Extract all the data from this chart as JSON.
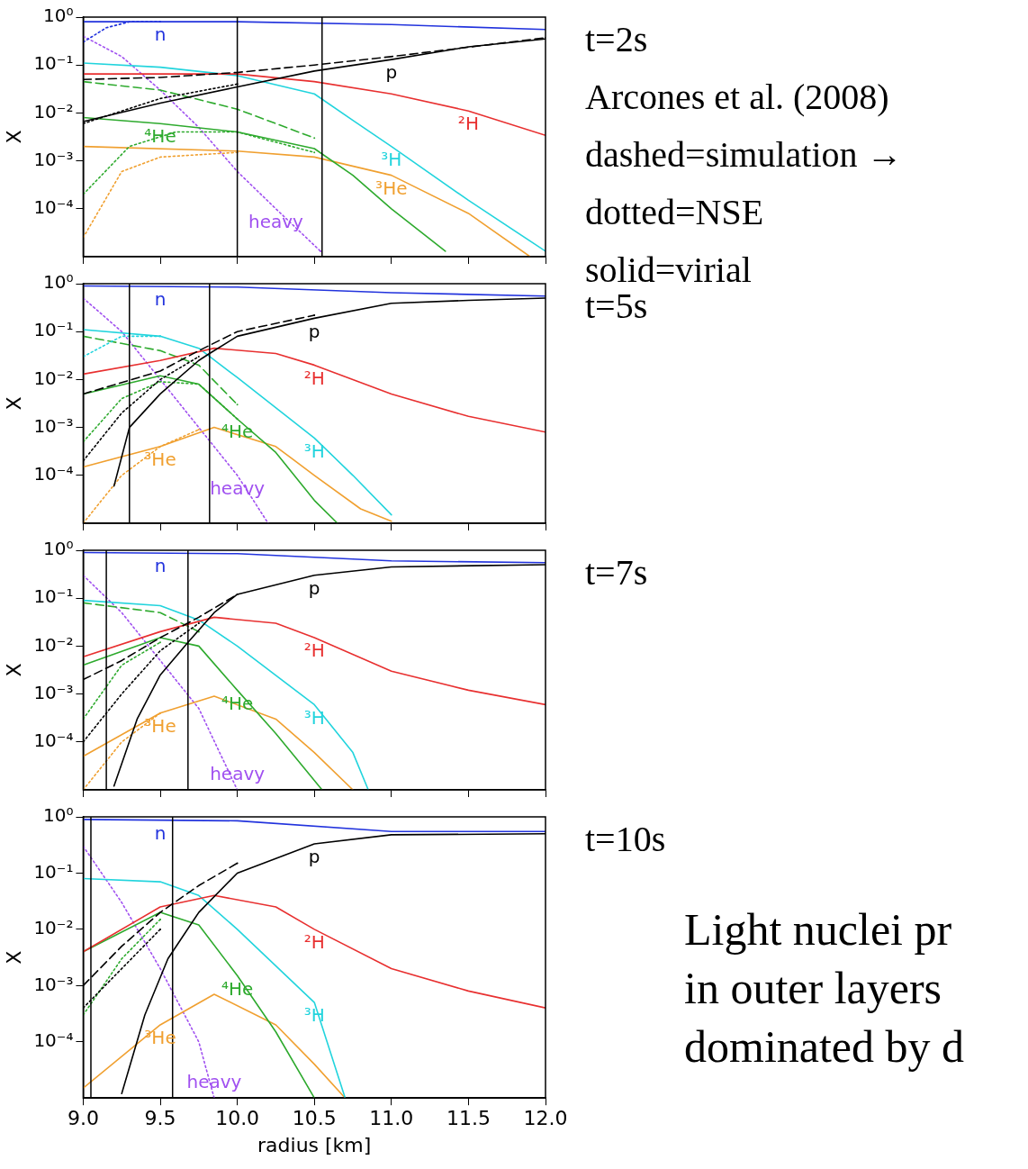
{
  "chart_data": [
    {
      "type": "line",
      "ylabel": "X",
      "log": "y",
      "tick_labels": "y",
      "xlim": [
        9,
        12
      ],
      "ylim": [
        1e-05,
        1
      ],
      "xticks": [
        9,
        9.5,
        10,
        10.5,
        11,
        11.5,
        12
      ],
      "yticks": [
        {
          "value": 1,
          "label": "10⁰"
        },
        {
          "value": 0.1,
          "label": "10⁻¹"
        },
        {
          "value": 0.01,
          "label": "10⁻²"
        },
        {
          "value": 0.001,
          "label": "10⁻³"
        },
        {
          "value": 0.0001,
          "label": "10⁻⁴"
        }
      ],
      "ref_lines": [
        {
          "axis": "x",
          "value": 10.0,
          "color": "#000000"
        },
        {
          "axis": "x",
          "value": 10.55,
          "color": "#000000"
        }
      ],
      "series": [
        {
          "color": "#2233dd",
          "line_style": "solid",
          "x": [
            9,
            10,
            11,
            12
          ],
          "values": [
            0.8,
            0.8,
            0.7,
            0.55
          ]
        },
        {
          "color": "#2233dd",
          "line_style": "dotted",
          "x": [
            9,
            9.15,
            9.3,
            9.5
          ],
          "values": [
            0.3,
            0.6,
            0.8,
            0.8
          ]
        },
        {
          "color": "#000000",
          "line_style": "solid",
          "x": [
            9,
            9.5,
            10,
            10.5,
            11,
            11.5,
            12
          ],
          "values": [
            0.0066,
            0.016,
            0.035,
            0.075,
            0.13,
            0.24,
            0.35
          ]
        },
        {
          "color": "#000000",
          "line_style": "dashed",
          "x": [
            9,
            9.5,
            10,
            10.5,
            11,
            12
          ],
          "values": [
            0.05,
            0.055,
            0.07,
            0.1,
            0.15,
            0.37
          ]
        },
        {
          "color": "#000000",
          "line_style": "dotted",
          "x": [
            9,
            9.5,
            10
          ],
          "values": [
            0.006,
            0.02,
            0.04
          ]
        },
        {
          "color": "#e83030",
          "line_style": "solid",
          "x": [
            9,
            10,
            10.5,
            11,
            11.5,
            12
          ],
          "values": [
            0.065,
            0.065,
            0.045,
            0.025,
            0.011,
            0.0034
          ]
        },
        {
          "color": "#22d4dd",
          "line_style": "solid",
          "x": [
            9,
            9.5,
            10,
            10.5,
            10.75,
            11,
            11.5,
            12
          ],
          "values": [
            0.11,
            0.09,
            0.06,
            0.025,
            0.007,
            0.002,
            0.00015,
            1.3e-05
          ]
        },
        {
          "color": "#2eaa2e",
          "line_style": "solid",
          "x": [
            9,
            9.5,
            10,
            10.5,
            10.75,
            11,
            11.35
          ],
          "values": [
            0.008,
            0.006,
            0.004,
            0.0018,
            0.0005,
            0.0001,
            1.3e-05
          ]
        },
        {
          "color": "#2eaa2e",
          "line_style": "dashed",
          "x": [
            9,
            9.5,
            10,
            10.5
          ],
          "values": [
            0.045,
            0.03,
            0.012,
            0.003
          ]
        },
        {
          "color": "#2eaa2e",
          "line_style": "dotted",
          "x": [
            9,
            9.3,
            9.6,
            10,
            10.5
          ],
          "values": [
            0.0002,
            0.002,
            0.004,
            0.004,
            0.0015
          ]
        },
        {
          "color": "#f0a030",
          "line_style": "solid",
          "x": [
            9,
            10,
            10.5,
            11,
            11.5,
            11.9
          ],
          "values": [
            0.002,
            0.0016,
            0.0012,
            0.0005,
            8e-05,
            1e-05
          ]
        },
        {
          "color": "#f0a030",
          "line_style": "dotted",
          "x": [
            9,
            9.25,
            9.5,
            10
          ],
          "values": [
            2.5e-05,
            0.0006,
            0.0012,
            0.0015
          ]
        },
        {
          "color": "#a050f0",
          "line_style": "dotted",
          "x": [
            9,
            9.25,
            9.5,
            9.75,
            10,
            10.25,
            10.54
          ],
          "values": [
            0.4,
            0.15,
            0.03,
            0.005,
            0.0006,
            0.0001,
            1.3e-05
          ]
        }
      ],
      "annotations": [
        "t=2s",
        "Arcones et al. (2008)",
        "dashed=simulation →",
        "dotted=NSE",
        "solid=virial",
        {
          "text": "n",
          "x": 9.5,
          "y": 0.8
        },
        {
          "text": "p",
          "x": 11,
          "y": 0.13
        },
        {
          "text": "²H",
          "x": 11.5,
          "y": 0.011
        },
        {
          "text": "³H",
          "x": 11,
          "y": 0.002
        },
        {
          "text": "⁴He",
          "x": 9.5,
          "y": 0.006
        },
        {
          "text": "³He",
          "x": 11,
          "y": 0.0005
        },
        {
          "text": "heavy",
          "x": 10.25,
          "y": 0.0001
        }
      ]
    },
    {
      "type": "line",
      "ylabel": "X",
      "log": "y",
      "tick_labels": "y",
      "xlim": [
        9,
        12
      ],
      "ylim": [
        1e-05,
        1
      ],
      "xticks": [
        9,
        9.5,
        10,
        10.5,
        11,
        11.5,
        12
      ],
      "yticks": [
        {
          "value": 1,
          "label": "10⁰"
        },
        {
          "value": 0.1,
          "label": "10⁻¹"
        },
        {
          "value": 0.01,
          "label": "10⁻²"
        },
        {
          "value": 0.001,
          "label": "10⁻³"
        },
        {
          "value": 0.0001,
          "label": "10⁻⁴"
        }
      ],
      "ref_lines": [
        {
          "axis": "x",
          "value": 9.3,
          "color": "#000000"
        },
        {
          "axis": "x",
          "value": 9.82,
          "color": "#000000"
        }
      ],
      "series": [
        {
          "color": "#2233dd",
          "line_style": "solid",
          "x": [
            9,
            10,
            11,
            12
          ],
          "values": [
            0.9,
            0.85,
            0.65,
            0.55
          ]
        },
        {
          "color": "#000000",
          "line_style": "solid",
          "x": [
            9.2,
            9.3,
            9.5,
            9.75,
            9.82,
            10,
            10.5,
            11,
            11.5,
            12
          ],
          "values": [
            6e-05,
            0.001,
            0.005,
            0.025,
            0.035,
            0.08,
            0.19,
            0.39,
            0.45,
            0.5
          ]
        },
        {
          "color": "#000000",
          "line_style": "dashed",
          "x": [
            9,
            9.5,
            9.75,
            10,
            10.5
          ],
          "values": [
            0.005,
            0.015,
            0.04,
            0.1,
            0.22
          ]
        },
        {
          "color": "#000000",
          "line_style": "dotted",
          "x": [
            9,
            9.25,
            9.5,
            9.75
          ],
          "values": [
            0.0002,
            0.002,
            0.01,
            0.03
          ]
        },
        {
          "color": "#e83030",
          "line_style": "solid",
          "x": [
            9,
            9.5,
            9.85,
            10.25,
            10.5,
            11,
            11.5,
            12
          ],
          "values": [
            0.013,
            0.025,
            0.045,
            0.035,
            0.02,
            0.005,
            0.0017,
            0.0008
          ]
        },
        {
          "color": "#22d4dd",
          "line_style": "solid",
          "x": [
            9,
            9.5,
            9.75,
            10,
            10.5,
            10.75,
            11
          ],
          "values": [
            0.11,
            0.08,
            0.045,
            0.011,
            0.0006,
            0.0001,
            1.5e-05
          ]
        },
        {
          "color": "#22d4dd",
          "line_style": "dotted",
          "x": [
            9,
            9.25,
            9.5
          ],
          "values": [
            0.03,
            0.08,
            0.08
          ]
        },
        {
          "color": "#2eaa2e",
          "line_style": "solid",
          "x": [
            9,
            9.5,
            9.75,
            10,
            10.25,
            10.5,
            10.65
          ],
          "values": [
            0.005,
            0.012,
            0.008,
            0.0015,
            0.0003,
            3e-05,
            1e-05
          ]
        },
        {
          "color": "#2eaa2e",
          "line_style": "dashed",
          "x": [
            9,
            9.5,
            9.75,
            10
          ],
          "values": [
            0.08,
            0.04,
            0.02,
            0.003
          ]
        },
        {
          "color": "#2eaa2e",
          "line_style": "dotted",
          "x": [
            9,
            9.25,
            9.5,
            9.75,
            10
          ],
          "values": [
            0.0005,
            0.004,
            0.009,
            0.008,
            0.0015
          ]
        },
        {
          "color": "#f0a030",
          "line_style": "solid",
          "x": [
            9,
            9.5,
            9.85,
            10.25,
            10.5,
            10.8,
            11
          ],
          "values": [
            0.00015,
            0.0004,
            0.001,
            0.0004,
            0.0001,
            2e-05,
            1.1e-05
          ]
        },
        {
          "color": "#f0a030",
          "line_style": "dotted",
          "x": [
            9,
            9.25,
            9.5,
            9.75
          ],
          "values": [
            1e-05,
            0.0001,
            0.0004,
            0.0009
          ]
        },
        {
          "color": "#a050f0",
          "line_style": "dotted",
          "x": [
            9,
            9.25,
            9.5,
            9.75,
            10,
            10.2
          ],
          "values": [
            0.5,
            0.1,
            0.01,
            0.001,
            0.0001,
            1e-05
          ]
        }
      ],
      "annotations": [
        "t=5s",
        {
          "text": "n",
          "x": 9.5,
          "y": 0.875
        },
        {
          "text": "p",
          "x": 10.5,
          "y": 0.19
        },
        {
          "text": "²H",
          "x": 10.5,
          "y": 0.02
        },
        {
          "text": "³H",
          "x": 10.5,
          "y": 0.0006
        },
        {
          "text": "⁴He",
          "x": 10,
          "y": 0.0015
        },
        {
          "text": "³He",
          "x": 9.5,
          "y": 0.0004
        },
        {
          "text": "heavy",
          "x": 10,
          "y": 0.0001
        }
      ]
    },
    {
      "type": "line",
      "ylabel": "X",
      "log": "y",
      "tick_labels": "y",
      "xlim": [
        9,
        12
      ],
      "ylim": [
        1e-05,
        1
      ],
      "xticks": [
        9,
        9.5,
        10,
        10.5,
        11,
        11.5,
        12
      ],
      "yticks": [
        {
          "value": 1,
          "label": "10⁰"
        },
        {
          "value": 0.1,
          "label": "10⁻¹"
        },
        {
          "value": 0.01,
          "label": "10⁻²"
        },
        {
          "value": 0.001,
          "label": "10⁻³"
        },
        {
          "value": 0.0001,
          "label": "10⁻⁴"
        }
      ],
      "ref_lines": [
        {
          "axis": "x",
          "value": 9.15,
          "color": "#000000"
        },
        {
          "axis": "x",
          "value": 9.68,
          "color": "#000000"
        }
      ],
      "series": [
        {
          "color": "#2233dd",
          "line_style": "solid",
          "x": [
            9,
            10,
            11,
            12
          ],
          "values": [
            0.9,
            0.85,
            0.6,
            0.55
          ]
        },
        {
          "color": "#000000",
          "line_style": "solid",
          "x": [
            9.2,
            9.35,
            9.5,
            9.68,
            9.85,
            10,
            10.5,
            11,
            12
          ],
          "values": [
            1.2e-05,
            0.0003,
            0.0025,
            0.012,
            0.05,
            0.12,
            0.3,
            0.45,
            0.5
          ]
        },
        {
          "color": "#000000",
          "line_style": "dashed",
          "x": [
            9,
            9.25,
            9.5,
            9.75,
            10
          ],
          "values": [
            0.002,
            0.005,
            0.015,
            0.04,
            0.12
          ]
        },
        {
          "color": "#000000",
          "line_style": "dotted",
          "x": [
            9,
            9.25,
            9.5,
            9.75
          ],
          "values": [
            0.0001,
            0.001,
            0.008,
            0.03
          ]
        },
        {
          "color": "#e83030",
          "line_style": "solid",
          "x": [
            9,
            9.5,
            9.85,
            10.25,
            10.5,
            11,
            11.5,
            12
          ],
          "values": [
            0.006,
            0.02,
            0.04,
            0.03,
            0.015,
            0.003,
            0.0012,
            0.0006
          ]
        },
        {
          "color": "#22d4dd",
          "line_style": "solid",
          "x": [
            9,
            9.5,
            9.75,
            10,
            10.5,
            10.75,
            10.85
          ],
          "values": [
            0.09,
            0.07,
            0.035,
            0.01,
            0.0006,
            6e-05,
            1e-05
          ]
        },
        {
          "color": "#2eaa2e",
          "line_style": "solid",
          "x": [
            9,
            9.5,
            9.75,
            10,
            10.25,
            10.55
          ],
          "values": [
            0.004,
            0.015,
            0.01,
            0.0012,
            0.00015,
            1e-05
          ]
        },
        {
          "color": "#2eaa2e",
          "line_style": "dashed",
          "x": [
            9,
            9.5,
            9.75
          ],
          "values": [
            0.08,
            0.05,
            0.02
          ]
        },
        {
          "color": "#2eaa2e",
          "line_style": "dotted",
          "x": [
            9,
            9.25,
            9.5
          ],
          "values": [
            0.0003,
            0.004,
            0.012
          ]
        },
        {
          "color": "#f0a030",
          "line_style": "solid",
          "x": [
            9,
            9.5,
            9.85,
            10.25,
            10.5,
            10.75
          ],
          "values": [
            5e-05,
            0.0004,
            0.0009,
            0.0003,
            6e-05,
            1e-05
          ]
        },
        {
          "color": "#f0a030",
          "line_style": "dotted",
          "x": [
            9,
            9.25,
            9.5
          ],
          "values": [
            1e-05,
            0.0001,
            0.0004
          ]
        },
        {
          "color": "#a050f0",
          "line_style": "dotted",
          "x": [
            9,
            9.25,
            9.5,
            9.75,
            10
          ],
          "values": [
            0.3,
            0.05,
            0.005,
            0.0005,
            1e-05
          ]
        }
      ],
      "annotations": [
        "t=7s",
        {
          "text": "n",
          "x": 9.5,
          "y": 0.875
        },
        {
          "text": "p",
          "x": 10.5,
          "y": 0.3
        },
        {
          "text": "²H",
          "x": 10.5,
          "y": 0.015
        },
        {
          "text": "³H",
          "x": 10.5,
          "y": 0.0006
        },
        {
          "text": "⁴He",
          "x": 10,
          "y": 0.0012
        },
        {
          "text": "³He",
          "x": 9.5,
          "y": 0.0004
        },
        {
          "text": "heavy",
          "x": 10,
          "y": 1e-05
        }
      ]
    },
    {
      "type": "line",
      "xlabel": "radius [km]",
      "ylabel": "X",
      "log": "y",
      "xlim": [
        9,
        12
      ],
      "ylim": [
        1e-05,
        1
      ],
      "xticks": [
        {
          "value": 9,
          "label": "9.0"
        },
        {
          "value": 9.5,
          "label": "9.5"
        },
        {
          "value": 10,
          "label": "10.0"
        },
        {
          "value": 10.5,
          "label": "10.5"
        },
        {
          "value": 11,
          "label": "11.0"
        },
        {
          "value": 11.5,
          "label": "11.5"
        },
        {
          "value": 12,
          "label": "12.0"
        }
      ],
      "yticks": [
        {
          "value": 1,
          "label": "10⁰"
        },
        {
          "value": 0.1,
          "label": "10⁻¹"
        },
        {
          "value": 0.01,
          "label": "10⁻²"
        },
        {
          "value": 0.001,
          "label": "10⁻³"
        },
        {
          "value": 0.0001,
          "label": "10⁻⁴"
        }
      ],
      "ref_lines": [
        {
          "axis": "x",
          "value": 9.05,
          "color": "#000000"
        },
        {
          "axis": "x",
          "value": 9.58,
          "color": "#000000"
        }
      ],
      "series": [
        {
          "color": "#2233dd",
          "line_style": "solid",
          "x": [
            9,
            10,
            11,
            12
          ],
          "values": [
            0.9,
            0.85,
            0.55,
            0.55
          ]
        },
        {
          "color": "#000000",
          "line_style": "solid",
          "x": [
            9.25,
            9.4,
            9.55,
            9.75,
            10,
            10.5,
            11,
            12
          ],
          "values": [
            1.2e-05,
            0.0003,
            0.003,
            0.02,
            0.1,
            0.33,
            0.48,
            0.5
          ]
        },
        {
          "color": "#000000",
          "line_style": "dashed",
          "x": [
            9,
            9.25,
            9.5,
            9.75,
            10
          ],
          "values": [
            0.001,
            0.005,
            0.02,
            0.06,
            0.15
          ]
        },
        {
          "color": "#000000",
          "line_style": "dotted",
          "x": [
            9,
            9.25,
            9.5
          ],
          "values": [
            0.0004,
            0.002,
            0.01
          ]
        },
        {
          "color": "#e83030",
          "line_style": "solid",
          "x": [
            9,
            9.5,
            9.85,
            10.25,
            10.5,
            11,
            11.5,
            12
          ],
          "values": [
            0.004,
            0.025,
            0.04,
            0.025,
            0.01,
            0.002,
            0.0008,
            0.0004
          ]
        },
        {
          "color": "#22d4dd",
          "line_style": "solid",
          "x": [
            9,
            9.5,
            9.75,
            10,
            10.5,
            10.7
          ],
          "values": [
            0.08,
            0.07,
            0.04,
            0.01,
            0.0005,
            1e-05
          ]
        },
        {
          "color": "#2eaa2e",
          "line_style": "solid",
          "x": [
            9,
            9.5,
            9.75,
            10,
            10.25,
            10.5
          ],
          "values": [
            0.004,
            0.02,
            0.012,
            0.0015,
            0.00015,
            1e-05
          ]
        },
        {
          "color": "#2eaa2e",
          "line_style": "dotted",
          "x": [
            9,
            9.25,
            9.5
          ],
          "values": [
            0.0003,
            0.003,
            0.015
          ]
        },
        {
          "color": "#f0a030",
          "line_style": "solid",
          "x": [
            9,
            9.5,
            9.85,
            10.25,
            10.5,
            10.7
          ],
          "values": [
            1.5e-05,
            0.0002,
            0.0007,
            0.0002,
            4e-05,
            1e-05
          ]
        },
        {
          "color": "#a050f0",
          "line_style": "dotted",
          "x": [
            9,
            9.25,
            9.5,
            9.75,
            9.85
          ],
          "values": [
            0.3,
            0.03,
            0.002,
            0.0001,
            1e-05
          ]
        }
      ],
      "annotations": [
        "t=10s",
        "Light nuclei pr",
        "in outer layers",
        "dominated by d",
        {
          "text": "n",
          "x": 9.5,
          "y": 0.875
        },
        {
          "text": "p",
          "x": 10.5,
          "y": 0.33
        },
        {
          "text": "²H",
          "x": 10.5,
          "y": 0.01
        },
        {
          "text": "³H",
          "x": 10.5,
          "y": 0.0005
        },
        {
          "text": "⁴He",
          "x": 10,
          "y": 0.0015
        },
        {
          "text": "³He",
          "x": 9.5,
          "y": 0.0002
        },
        {
          "text": "heavy",
          "x": 9.85,
          "y": 1e-05
        }
      ]
    }
  ]
}
